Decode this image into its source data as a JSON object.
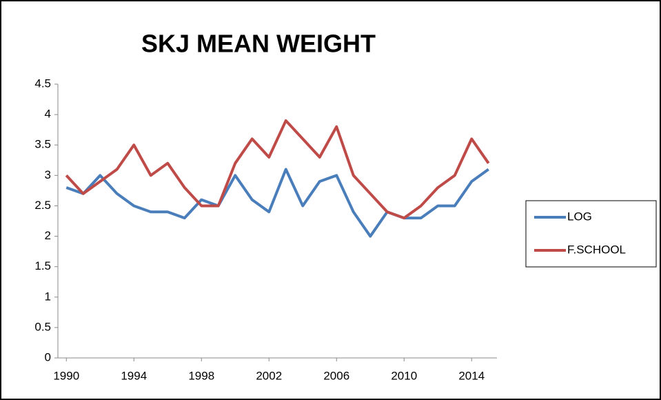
{
  "chart_data": {
    "type": "line",
    "title": "SKJ MEAN WEIGHT",
    "x": [
      1990,
      1991,
      1992,
      1993,
      1994,
      1995,
      1996,
      1997,
      1998,
      1999,
      2000,
      2001,
      2002,
      2003,
      2004,
      2005,
      2006,
      2007,
      2008,
      2009,
      2010,
      2011,
      2012,
      2013,
      2014,
      2015
    ],
    "series": [
      {
        "name": "LOG",
        "color": "#4a7ebb",
        "values": [
          2.8,
          2.7,
          3.0,
          2.7,
          2.5,
          2.4,
          2.4,
          2.3,
          2.6,
          2.5,
          3.0,
          2.6,
          2.4,
          3.1,
          2.5,
          2.9,
          3.0,
          2.4,
          2.0,
          2.4,
          2.3,
          2.3,
          2.5,
          2.5,
          2.9,
          3.1
        ]
      },
      {
        "name": "F.SCHOOL",
        "color": "#be4b48",
        "values": [
          3.0,
          2.7,
          2.9,
          3.1,
          3.5,
          3.0,
          3.2,
          2.8,
          2.5,
          2.5,
          3.2,
          3.6,
          3.3,
          3.9,
          3.6,
          3.3,
          3.8,
          3.0,
          2.7,
          2.4,
          2.3,
          2.5,
          2.8,
          3.0,
          3.6,
          3.2
        ]
      }
    ],
    "xlim": [
      1989.5,
      2015.5
    ],
    "xticks": [
      1990,
      1994,
      1998,
      2002,
      2006,
      2010,
      2014
    ],
    "ylim": [
      0,
      4.5
    ],
    "yticks": [
      0,
      0.5,
      1,
      1.5,
      2,
      2.5,
      3,
      3.5,
      4,
      4.5
    ],
    "grid": false,
    "legend": "right"
  }
}
